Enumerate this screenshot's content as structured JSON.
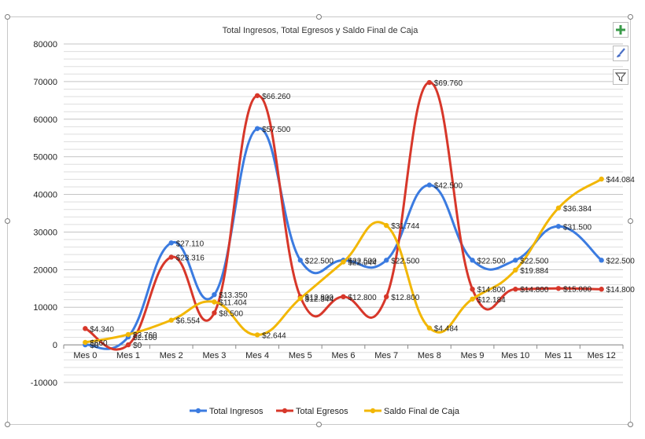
{
  "icons": {
    "add": "plus-icon",
    "style": "brush-icon",
    "filter": "filter-icon"
  },
  "chart_data": {
    "type": "line",
    "title": "Total Ingresos, Total Egresos y Saldo Final de Caja",
    "xlabel": "",
    "ylabel": "",
    "ylim": [
      -10000,
      80000
    ],
    "yticks": [
      80000,
      70000,
      60000,
      50000,
      40000,
      30000,
      20000,
      10000,
      0,
      -10000
    ],
    "grid": true,
    "legend_position": "bottom",
    "categories": [
      "Mes 0",
      "Mes 1",
      "Mes 2",
      "Mes 3",
      "Mes 4",
      "Mes 5",
      "Mes 6",
      "Mes 7",
      "Mes 8",
      "Mes 9",
      "Mes 10",
      "Mes 11",
      "Mes 12"
    ],
    "series": [
      {
        "name": "Total Ingresos",
        "color": "#3b7be0",
        "values": [
          0,
          2100,
          27110,
          13350,
          57500,
          22500,
          22500,
          22500,
          42500,
          22500,
          22500,
          31500,
          22500
        ],
        "labels": [
          "$0",
          "$2.100",
          "$27.110",
          "$13.350",
          "$57.500",
          "$22.500",
          "$22.500",
          "$22.500",
          "$42.500",
          "$22.500",
          "$22.500",
          "$31.500",
          "$22.500"
        ]
      },
      {
        "name": "Total Egresos",
        "color": "#d7372a",
        "values": [
          4340,
          0,
          23316,
          8500,
          66260,
          12800,
          12800,
          12800,
          69760,
          14800,
          14800,
          15000,
          14800
        ],
        "labels": [
          "$4.340",
          "$0",
          "$23.316",
          "$8.500",
          "$66.260",
          "$12.800",
          "$12.800",
          "$12.800",
          "$69.760",
          "$14.800",
          "$14.800",
          "$15.000",
          "$14.800"
        ]
      },
      {
        "name": "Saldo Final de Caja",
        "color": "#f2b705",
        "values": [
          660,
          2760,
          6554,
          11404,
          2644,
          12344,
          22044,
          31744,
          4484,
          12184,
          19884,
          36384,
          44084
        ],
        "labels": [
          "$660",
          "$2.760",
          "$6.554",
          "$11.404",
          "$2.644",
          "$12.344",
          "$22.044",
          "$31.744",
          "$4.484",
          "$12.184",
          "$19.884",
          "$36.384",
          "$44.084"
        ]
      }
    ]
  }
}
